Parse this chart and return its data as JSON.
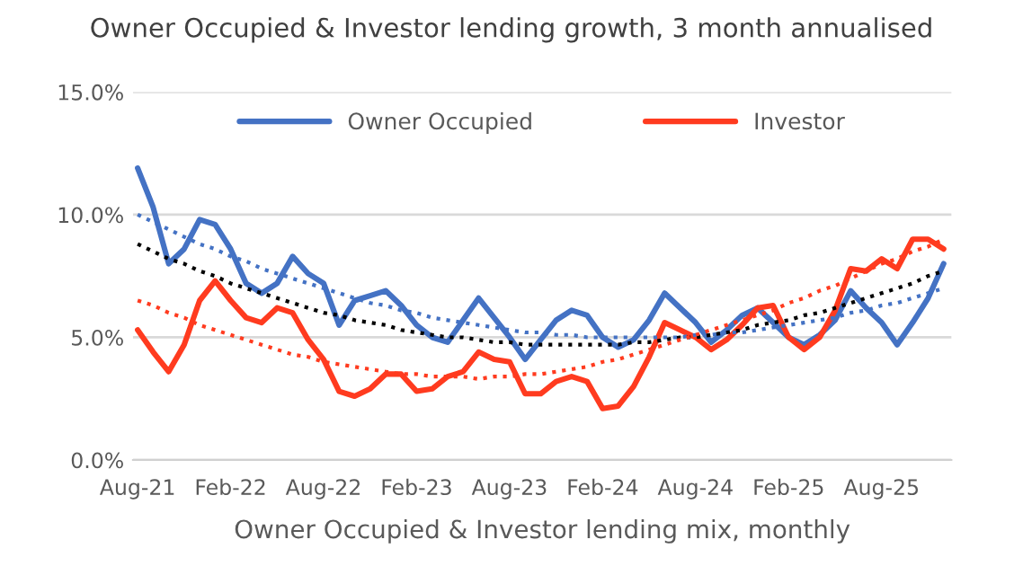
{
  "chart_data": {
    "type": "line",
    "title": "Owner Occupied & Investor lending growth, 3 month annualised",
    "xlabel": "Owner Occupied & Investor lending mix, monthly",
    "categories": [
      "Aug-21",
      null,
      null,
      null,
      null,
      null,
      "Feb-22",
      null,
      null,
      null,
      null,
      null,
      "Aug-22",
      null,
      null,
      null,
      null,
      null,
      "Feb-23",
      null,
      null,
      null,
      null,
      null,
      "Aug-23",
      null,
      null,
      null,
      null,
      null,
      "Feb-24",
      null,
      null,
      null,
      null,
      null,
      "Aug-24",
      null,
      null,
      null,
      null,
      null,
      "Feb-25",
      null,
      null,
      null,
      null,
      null,
      "Aug-25",
      null,
      null,
      null,
      null
    ],
    "series": [
      {
        "name": "Owner Occupied",
        "color": "#4472c4",
        "line_style": "solid",
        "values": [
          11.9,
          10.3,
          8.0,
          8.6,
          9.8,
          9.6,
          8.6,
          7.2,
          6.8,
          7.2,
          8.3,
          7.6,
          7.2,
          5.5,
          6.5,
          6.7,
          6.9,
          6.3,
          5.5,
          5.0,
          4.8,
          5.7,
          6.6,
          5.8,
          5.0,
          4.1,
          4.9,
          5.7,
          6.1,
          5.9,
          5.0,
          4.6,
          4.9,
          5.7,
          6.8,
          6.2,
          5.6,
          4.8,
          5.3,
          5.9,
          6.2,
          5.6,
          5.0,
          4.7,
          5.1,
          5.7,
          6.9,
          6.2,
          5.6,
          4.7,
          5.6,
          6.6,
          8.0
        ]
      },
      {
        "name": "Investor",
        "color": "#ff3b1f",
        "line_style": "solid",
        "values": [
          5.3,
          4.4,
          3.6,
          4.7,
          6.5,
          7.3,
          6.5,
          5.8,
          5.6,
          6.2,
          6.0,
          4.9,
          4.1,
          2.8,
          2.6,
          2.9,
          3.5,
          3.5,
          2.8,
          2.9,
          3.4,
          3.6,
          4.4,
          4.1,
          4.0,
          2.7,
          2.7,
          3.2,
          3.4,
          3.2,
          2.1,
          2.2,
          3.0,
          4.2,
          5.6,
          5.3,
          5.0,
          4.5,
          4.9,
          5.5,
          6.2,
          6.3,
          5.0,
          4.5,
          5.0,
          6.1,
          7.8,
          7.7,
          8.2,
          7.8,
          9.0,
          9.0,
          8.6
        ]
      },
      {
        "color": "#4472c4",
        "line_style": "dotted",
        "values": [
          10.0,
          9.7,
          9.4,
          9.1,
          8.8,
          8.6,
          8.3,
          8.1,
          7.8,
          7.6,
          7.4,
          7.2,
          7.0,
          6.8,
          6.6,
          6.4,
          6.3,
          6.1,
          6.0,
          5.8,
          5.7,
          5.6,
          5.5,
          5.4,
          5.3,
          5.2,
          5.2,
          5.1,
          5.1,
          5.0,
          5.0,
          5.0,
          5.0,
          5.0,
          5.0,
          5.0,
          5.1,
          5.1,
          5.2,
          5.2,
          5.3,
          5.4,
          5.5,
          5.6,
          5.7,
          5.8,
          6.0,
          6.1,
          6.3,
          6.4,
          6.6,
          6.8,
          7.0
        ]
      },
      {
        "color": "#000000",
        "line_style": "dotted",
        "values": [
          8.8,
          8.5,
          8.2,
          8.0,
          7.7,
          7.5,
          7.2,
          7.0,
          6.8,
          6.6,
          6.4,
          6.2,
          6.0,
          5.9,
          5.7,
          5.6,
          5.5,
          5.3,
          5.2,
          5.1,
          5.0,
          5.0,
          4.9,
          4.8,
          4.8,
          4.7,
          4.7,
          4.7,
          4.7,
          4.7,
          4.7,
          4.7,
          4.8,
          4.8,
          4.9,
          5.0,
          5.0,
          5.1,
          5.2,
          5.3,
          5.5,
          5.6,
          5.7,
          5.9,
          6.0,
          6.2,
          6.4,
          6.6,
          6.8,
          7.0,
          7.2,
          7.5,
          7.7
        ]
      },
      {
        "color": "#ff3b1f",
        "line_style": "dotted",
        "values": [
          6.5,
          6.3,
          6.0,
          5.8,
          5.5,
          5.3,
          5.1,
          4.9,
          4.7,
          4.5,
          4.3,
          4.2,
          4.0,
          3.9,
          3.8,
          3.7,
          3.6,
          3.5,
          3.5,
          3.4,
          3.4,
          3.4,
          3.3,
          3.4,
          3.4,
          3.5,
          3.5,
          3.6,
          3.7,
          3.8,
          4.0,
          4.1,
          4.3,
          4.5,
          4.7,
          4.9,
          5.1,
          5.3,
          5.5,
          5.7,
          5.9,
          6.1,
          6.4,
          6.6,
          6.9,
          7.1,
          7.4,
          7.7,
          8.0,
          8.2,
          8.5,
          8.7,
          9.0
        ]
      }
    ],
    "ylim": [
      0,
      15
    ],
    "yticks": [
      {
        "value": 0,
        "label": "0.0%"
      },
      {
        "value": 5,
        "label": "5.0%"
      },
      {
        "value": 10,
        "label": "10.0%"
      },
      {
        "value": 15,
        "label": "15.0%"
      }
    ],
    "grid": "y",
    "legend": "top"
  }
}
